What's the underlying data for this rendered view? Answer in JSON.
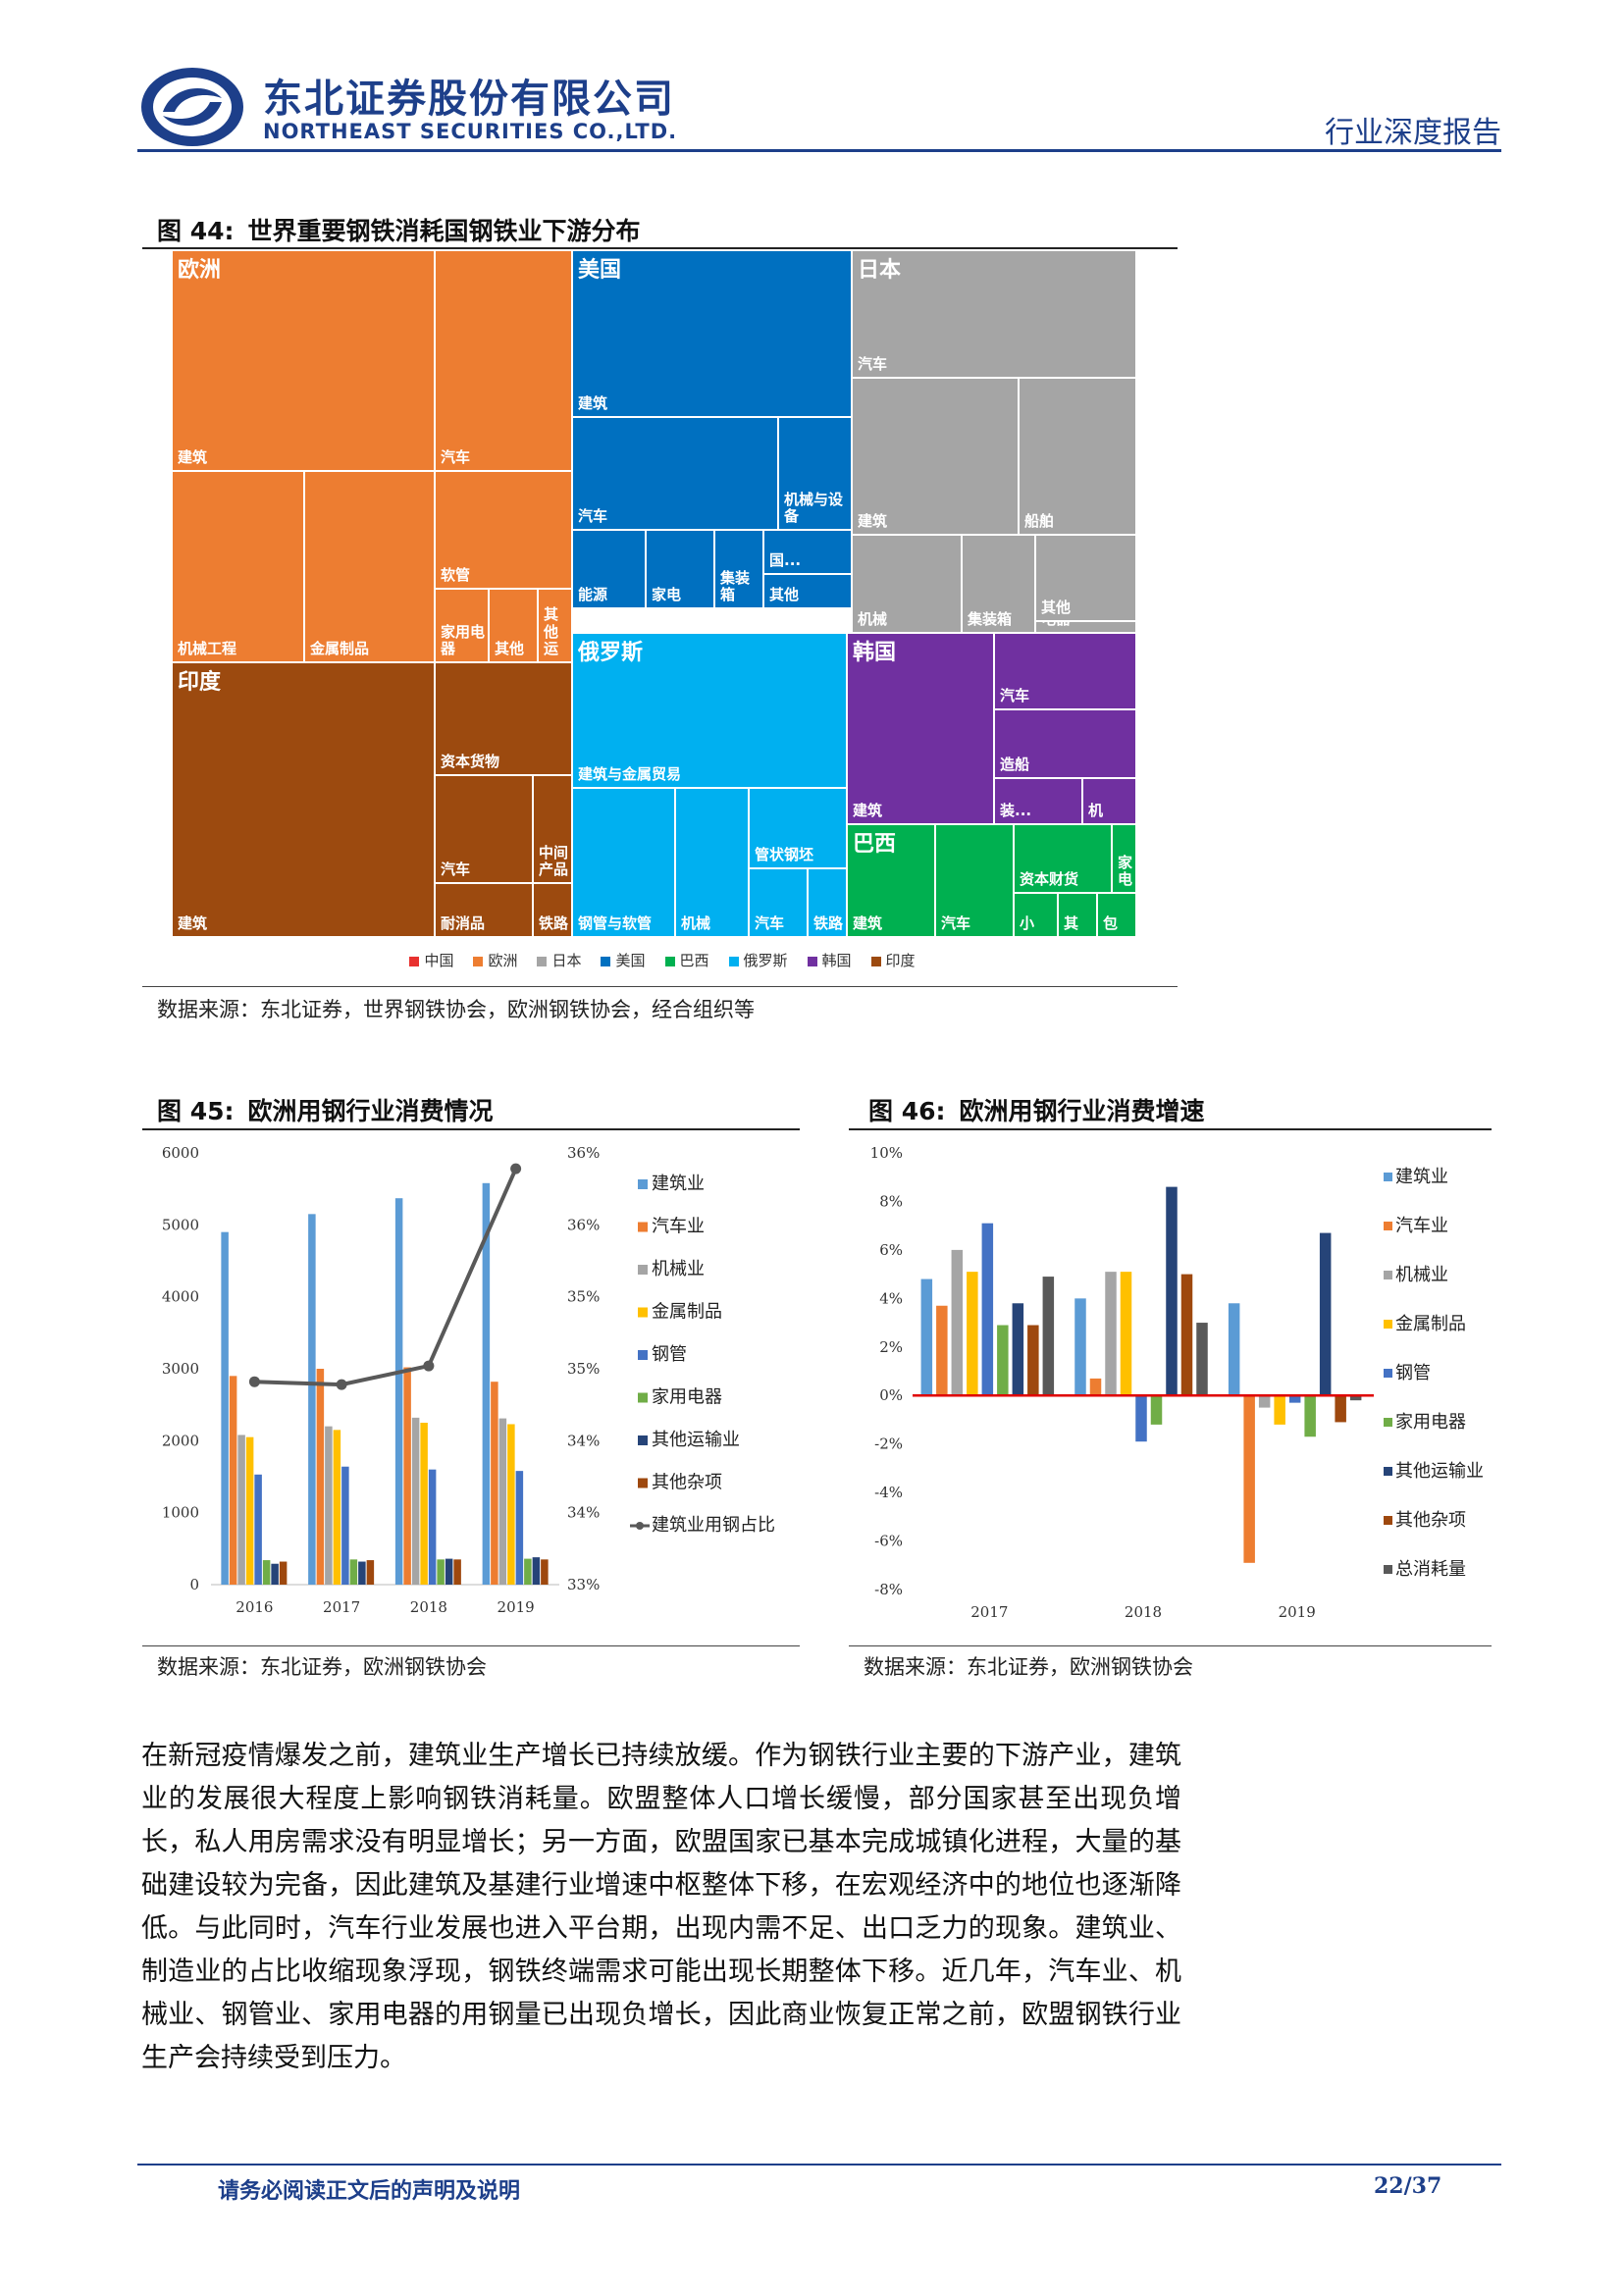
{
  "header": {
    "company_cn": "东北证券股份有限公司",
    "company_en": "NORTHEAST SECURITIES CO.,LTD.",
    "report_type": "行业深度报告"
  },
  "colors": {
    "brand": "#1d3f8a",
    "中国": "#e8312f",
    "欧洲": "#ed7d31",
    "日本": "#a5a5a5",
    "美国": "#0070c0",
    "巴西": "#00b050",
    "俄罗斯": "#00b0f0",
    "韩国": "#7030a0",
    "印度": "#9c4a0f"
  },
  "fig44": {
    "num": "图 44:",
    "title": "世界重要钢铁消耗国钢铁业下游分布",
    "source": "数据来源：东北证券，世界钢铁协会，欧洲钢铁协会，经合组织等",
    "legend": [
      "中国",
      "欧洲",
      "日本",
      "美国",
      "巴西",
      "俄罗斯",
      "韩国",
      "印度"
    ]
  },
  "fig45": {
    "num": "图 45:",
    "title": "欧洲用钢行业消费情况",
    "source": "数据来源：东北证券，欧洲钢铁协会"
  },
  "fig46": {
    "num": "图 46:",
    "title": "欧洲用钢行业消费增速",
    "source": "数据来源：东北证券，欧洲钢铁协会"
  },
  "paragraph": "在新冠疫情爆发之前，建筑业生产增长已持续放缓。作为钢铁行业主要的下游产业，建筑业的发展很大程度上影响钢铁消耗量。欧盟整体人口增长缓慢，部分国家甚至出现负增长，私人用房需求没有明显增长；另一方面，欧盟国家已基本完成城镇化进程，大量的基础建设较为完备，因此建筑及基建行业增速中枢整体下移，在宏观经济中的地位也逐渐降低。与此同时，汽车行业发展也进入平台期，出现内需不足、出口乏力的现象。建筑业、制造业的占比收缩现象浮现，钢铁终端需求可能出现长期整体下移。近几年，汽车业、机械业、钢管业、家用电器的用钢量已出现负增长，因此商业恢复正常之前，欧盟钢铁行业生产会持续受到压力。",
  "footer": {
    "disclaimer": "请务必阅读正文后的声明及说明",
    "page": "22/37"
  },
  "chart_data": [
    {
      "type": "treemap",
      "title": "世界重要钢铁消耗国钢铁业下游分布",
      "groups": [
        {
          "name": "欧洲",
          "items": [
            "建筑",
            "汽车",
            "机械工程",
            "金属制品",
            "软管",
            "家用电器",
            "其他",
            "其他运"
          ]
        },
        {
          "name": "美国",
          "items": [
            "建筑",
            "汽车",
            "机械与设备",
            "能源",
            "家电",
            "集装箱",
            "国...",
            "其他"
          ]
        },
        {
          "name": "日本",
          "items": [
            "汽车",
            "建筑",
            "船舶",
            "机械",
            "集装箱",
            "其他",
            "电器"
          ]
        },
        {
          "name": "印度",
          "items": [
            "建筑",
            "资本货物",
            "汽车",
            "中间产品",
            "耐消品",
            "铁路"
          ]
        },
        {
          "name": "俄罗斯",
          "items": [
            "建筑与金属贸易",
            "钢管与软管",
            "机械",
            "管状钢坯",
            "汽车",
            "铁路"
          ]
        },
        {
          "name": "韩国",
          "items": [
            "建筑",
            "汽车",
            "造船",
            "装...",
            "机"
          ]
        },
        {
          "name": "巴西",
          "items": [
            "建筑",
            "汽车",
            "资本财货",
            "家电",
            "小",
            "其",
            "包"
          ]
        }
      ]
    },
    {
      "type": "bar",
      "title": "欧洲用钢行业消费情况",
      "categories": [
        "2016",
        "2017",
        "2018",
        "2019"
      ],
      "y_ticks": [
        "0",
        "1000",
        "2000",
        "3000",
        "4000",
        "5000",
        "6000"
      ],
      "y2_ticks": [
        "33%",
        "34%",
        "34%",
        "35%",
        "35%",
        "36%",
        "36%"
      ],
      "ylim": [
        0,
        6000
      ],
      "series": [
        {
          "name": "建筑业",
          "color": "#5b9bd5",
          "values": [
            4900,
            5150,
            5370,
            5580
          ]
        },
        {
          "name": "汽车业",
          "color": "#ed7d31",
          "values": [
            2900,
            3000,
            3020,
            2820
          ]
        },
        {
          "name": "机械业",
          "color": "#a5a5a5",
          "values": [
            2080,
            2200,
            2320,
            2310
          ]
        },
        {
          "name": "金属制品",
          "color": "#ffc000",
          "values": [
            2050,
            2150,
            2250,
            2230
          ]
        },
        {
          "name": "钢管",
          "color": "#4472c4",
          "values": [
            1530,
            1640,
            1600,
            1580
          ]
        },
        {
          "name": "家用电器",
          "color": "#70ad47",
          "values": [
            340,
            350,
            350,
            360
          ]
        },
        {
          "name": "其他运输业",
          "color": "#264478",
          "values": [
            290,
            320,
            360,
            380
          ]
        },
        {
          "name": "其他杂项",
          "color": "#9e480e",
          "values": [
            320,
            340,
            350,
            350
          ]
        }
      ],
      "line": {
        "name": "建筑业用钢占比",
        "color": "#595959",
        "values": [
          0.3441,
          0.3439,
          0.3452,
          0.3589
        ],
        "ylim": [
          0.33,
          0.36
        ]
      }
    },
    {
      "type": "bar",
      "title": "欧洲用钢行业消费增速",
      "categories": [
        "2017",
        "2018",
        "2019"
      ],
      "y_ticks": [
        "-8%",
        "-6%",
        "-4%",
        "-2%",
        "0%",
        "2%",
        "4%",
        "6%",
        "8%",
        "10%"
      ],
      "ylim": [
        -8,
        10
      ],
      "series": [
        {
          "name": "建筑业",
          "color": "#5b9bd5",
          "values": [
            4.8,
            4.0,
            3.8
          ]
        },
        {
          "name": "汽车业",
          "color": "#ed7d31",
          "values": [
            3.7,
            0.7,
            -6.9
          ]
        },
        {
          "name": "机械业",
          "color": "#a5a5a5",
          "values": [
            6.0,
            5.1,
            -0.5
          ]
        },
        {
          "name": "金属制品",
          "color": "#ffc000",
          "values": [
            5.1,
            5.1,
            -1.2
          ]
        },
        {
          "name": "钢管",
          "color": "#4472c4",
          "values": [
            7.1,
            -1.9,
            -0.3
          ]
        },
        {
          "name": "家用电器",
          "color": "#70ad47",
          "values": [
            2.9,
            -1.2,
            -1.7
          ]
        },
        {
          "name": "其他运输业",
          "color": "#264478",
          "values": [
            3.8,
            8.6,
            6.7
          ]
        },
        {
          "name": "其他杂项",
          "color": "#9e480e",
          "values": [
            2.9,
            5.0,
            -1.1
          ]
        },
        {
          "name": "总消耗量",
          "color": "#595959",
          "values": [
            4.9,
            3.0,
            -0.2
          ]
        }
      ]
    }
  ]
}
